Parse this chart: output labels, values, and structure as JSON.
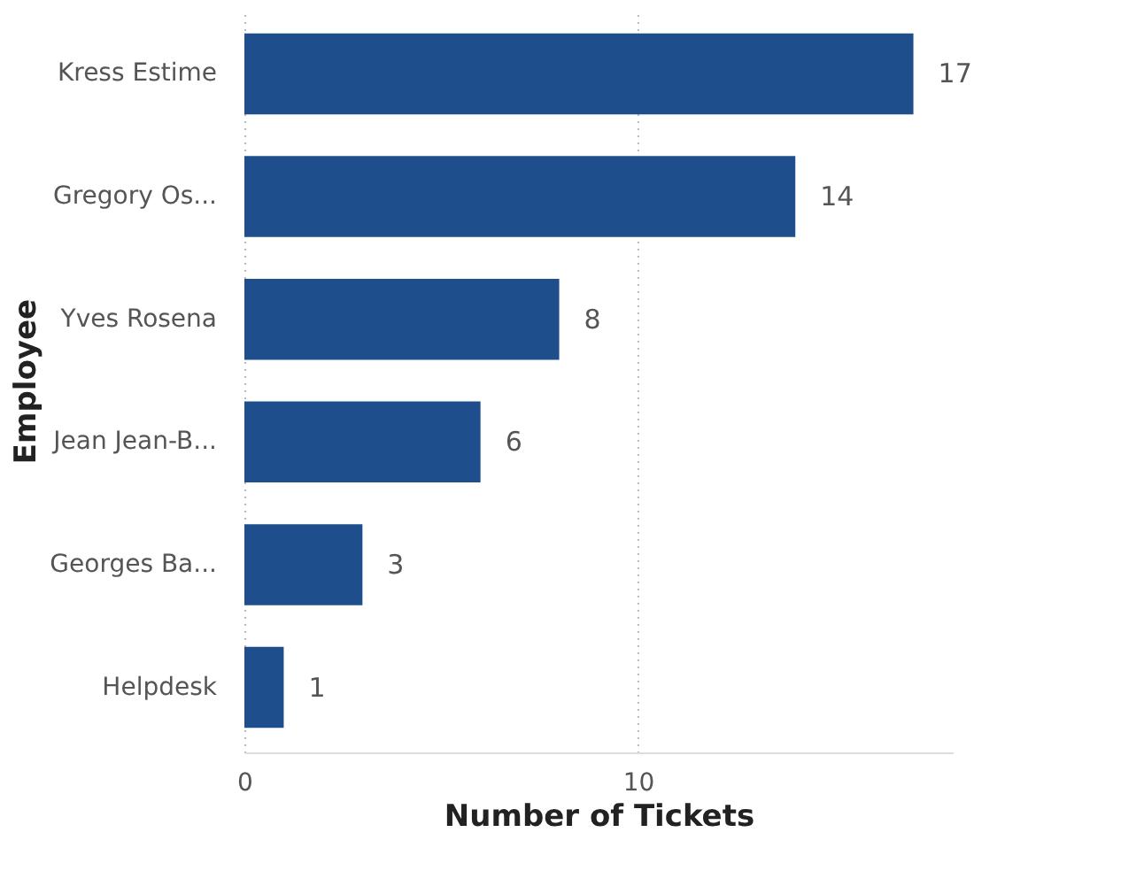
{
  "chart_data": {
    "type": "bar",
    "orientation": "horizontal",
    "xlabel": "Number of Tickets",
    "ylabel": "Employee",
    "categories": [
      "Kress Estime",
      "Gregory Os...",
      "Yves Rosena",
      "Jean Jean-B...",
      "Georges Ba...",
      "Helpdesk"
    ],
    "values": [
      17,
      14,
      8,
      6,
      3,
      1
    ],
    "color": "#1f4e8c",
    "xlim": [
      0,
      18
    ],
    "xticks": [
      0,
      10
    ],
    "grid": "x",
    "data_labels": true
  }
}
